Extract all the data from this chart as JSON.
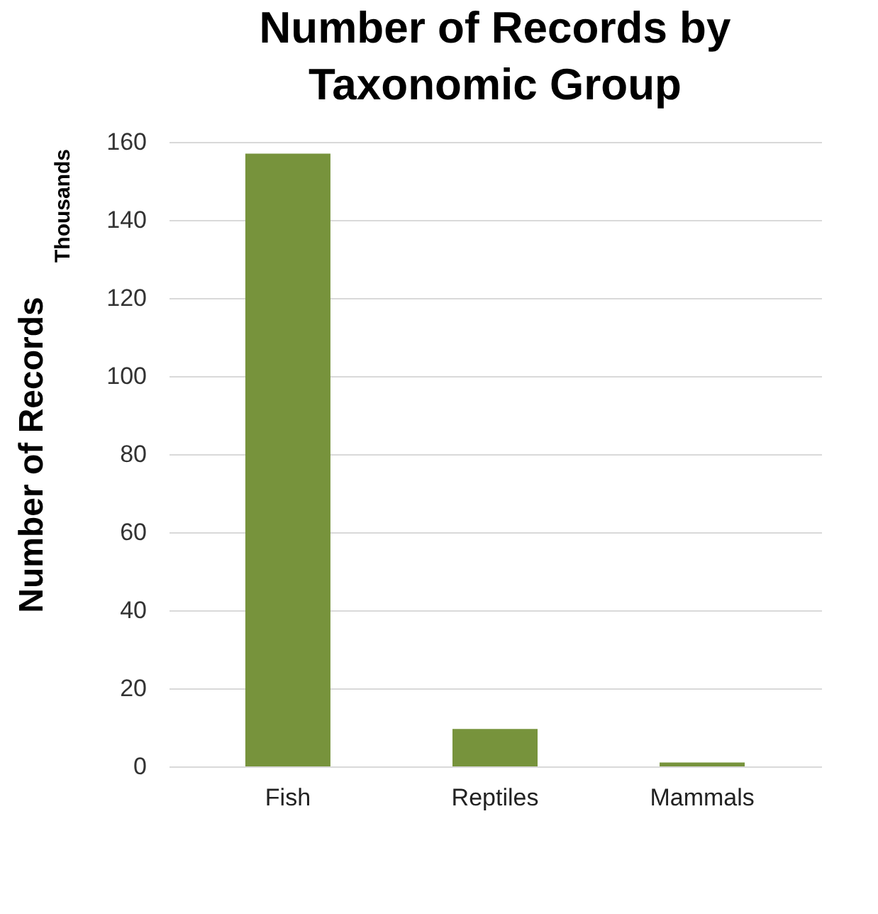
{
  "chart_data": {
    "type": "bar",
    "title": "Number of Records by\nTaxonomic Group",
    "ylabel": "Number of Records",
    "annotations": [
      "Thousands"
    ],
    "categories": [
      "Fish",
      "Reptiles",
      "Mammals"
    ],
    "values": [
      157,
      9.6,
      1.0
    ],
    "color": "#77933c",
    "ylim": [
      0,
      160
    ],
    "yticks": [
      0,
      20,
      40,
      60,
      80,
      100,
      120,
      140,
      160
    ],
    "grid": "y"
  }
}
